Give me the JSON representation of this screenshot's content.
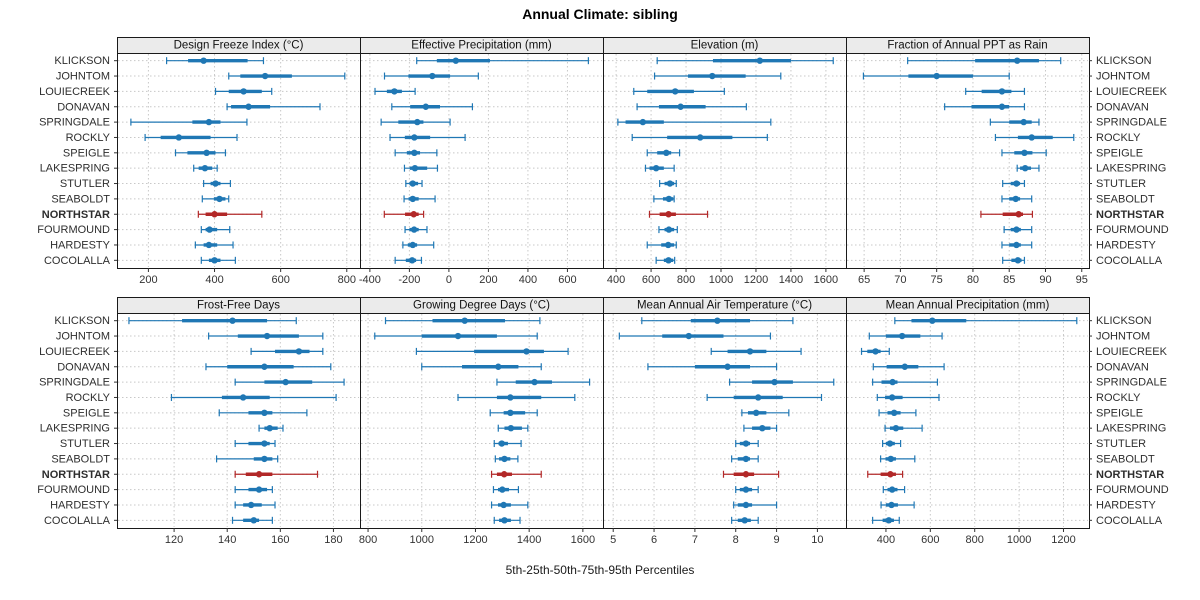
{
  "title": "Annual Climate: sibling",
  "caption": "5th-25th-50th-75th-95th Percentiles",
  "highlight_station": "NORTHSTAR",
  "stations": [
    "KLICKSON",
    "JOHNTOM",
    "LOUIECREEK",
    "DONAVAN",
    "SPRINGDALE",
    "ROCKLY",
    "SPEIGLE",
    "LAKESPRING",
    "STUTLER",
    "SEABOLDT",
    "NORTHSTAR",
    "FOURMOUND",
    "HARDESTY",
    "COCOLALLA"
  ],
  "colors": {
    "series": "#1F77B4",
    "highlight": "#B22828",
    "strip_bg": "#EBEBEB",
    "grid": "#C8C8C8",
    "border": "#1A1A1A",
    "text": "#2E2E2E",
    "tick_text": "#333333"
  },
  "percentile_levels": [
    5,
    25,
    50,
    75,
    95
  ],
  "chart_data": [
    {
      "type": "scatter",
      "variant": "percentile-intervals",
      "row": 0,
      "col": 0,
      "title": "Design Freeze Index (°C)",
      "xlim": [
        105,
        840
      ],
      "xticks": [
        200,
        400,
        600,
        800
      ],
      "grid": true,
      "percentiles": [
        [
          255,
          320,
          367,
          500,
          548
        ],
        [
          443,
          478,
          553,
          634,
          794
        ],
        [
          403,
          443,
          488,
          543,
          573
        ],
        [
          438,
          450,
          503,
          568,
          719
        ],
        [
          147,
          333,
          383,
          418,
          498
        ],
        [
          190,
          237,
          292,
          388,
          468
        ],
        [
          282,
          318,
          376,
          403,
          433
        ],
        [
          337,
          352,
          371,
          393,
          408
        ],
        [
          367,
          388,
          403,
          418,
          448
        ],
        [
          363,
          398,
          415,
          433,
          443
        ],
        [
          351,
          373,
          400,
          438,
          543
        ],
        [
          360,
          373,
          385,
          408,
          446
        ],
        [
          342,
          367,
          383,
          408,
          456
        ],
        [
          360,
          383,
          400,
          418,
          463
        ]
      ]
    },
    {
      "type": "scatter",
      "variant": "percentile-intervals",
      "row": 0,
      "col": 1,
      "title": "Effective Precipitation (mm)",
      "xlim": [
        -450,
        780
      ],
      "xticks": [
        -400,
        -200,
        0,
        200,
        400,
        600
      ],
      "grid": true,
      "percentiles": [
        [
          -163,
          -61,
          35,
          208,
          706
        ],
        [
          -326,
          -205,
          -84,
          6,
          149
        ],
        [
          -374,
          -314,
          -276,
          -238,
          -171
        ],
        [
          -289,
          -196,
          -117,
          -45,
          119
        ],
        [
          -343,
          -256,
          -160,
          -129,
          6
        ],
        [
          -298,
          -223,
          -175,
          -95,
          82
        ],
        [
          -272,
          -213,
          -175,
          -146,
          -61
        ],
        [
          -225,
          -198,
          -172,
          -110,
          -58
        ],
        [
          -218,
          -200,
          -183,
          -156,
          -136
        ],
        [
          -227,
          -204,
          -183,
          -153,
          -70
        ],
        [
          -327,
          -222,
          -178,
          -153,
          -128
        ],
        [
          -222,
          -200,
          -176,
          -153,
          -111
        ],
        [
          -233,
          -208,
          -183,
          -161,
          -77
        ],
        [
          -272,
          -218,
          -186,
          -166,
          -139
        ]
      ]
    },
    {
      "type": "scatter",
      "variant": "percentile-intervals",
      "row": 0,
      "col": 2,
      "title": "Elevation (m)",
      "xlim": [
        325,
        1715
      ],
      "xticks": [
        400,
        600,
        800,
        1000,
        1200,
        1400,
        1600
      ],
      "grid": true,
      "percentiles": [
        [
          635,
          954,
          1222,
          1400,
          1642
        ],
        [
          620,
          811,
          950,
          1141,
          1342
        ],
        [
          501,
          578,
          738,
          845,
          1019
        ],
        [
          520,
          645,
          769,
          912,
          1145
        ],
        [
          410,
          454,
          553,
          673,
          1285
        ],
        [
          492,
          692,
          881,
          1065,
          1265
        ],
        [
          578,
          635,
          687,
          715,
          763
        ],
        [
          568,
          591,
          629,
          673,
          732
        ],
        [
          649,
          677,
          708,
          732,
          744
        ],
        [
          616,
          668,
          702,
          727,
          732
        ],
        [
          591,
          649,
          700,
          742,
          923
        ],
        [
          645,
          677,
          702,
          732,
          750
        ],
        [
          578,
          658,
          698,
          732,
          744
        ],
        [
          629,
          673,
          700,
          727,
          735
        ]
      ]
    },
    {
      "type": "scatter",
      "variant": "percentile-intervals",
      "row": 0,
      "col": 3,
      "title": "Fraction of Annual PPT as Rain",
      "xlim": [
        62.5,
        96
      ],
      "xticks": [
        65,
        70,
        75,
        80,
        85,
        90,
        95
      ],
      "grid": true,
      "percentiles": [
        [
          71,
          80.3,
          86.1,
          89.1,
          92.1
        ],
        [
          64.9,
          71.1,
          75,
          80,
          85
        ],
        [
          79,
          81.2,
          84,
          85.3,
          87.1
        ],
        [
          76.1,
          79.8,
          84,
          85,
          87.1
        ],
        [
          82.4,
          85,
          87,
          88.1,
          89.1
        ],
        [
          83.1,
          86.2,
          88.1,
          91,
          93.9
        ],
        [
          84,
          85.7,
          87.1,
          88.2,
          90.1
        ],
        [
          86.1,
          86.5,
          87.2,
          88,
          89.1
        ],
        [
          84.1,
          85.2,
          86,
          86.5,
          87.1
        ],
        [
          84,
          85,
          85.9,
          86.5,
          88.1
        ],
        [
          81.1,
          84.1,
          86.3,
          86.9,
          88.2
        ],
        [
          84.3,
          85.2,
          86,
          86.6,
          88.1
        ],
        [
          84,
          85,
          86,
          86.6,
          88.1
        ],
        [
          84.1,
          85.3,
          86.2,
          86.7,
          87.1
        ]
      ]
    },
    {
      "type": "scatter",
      "variant": "percentile-intervals",
      "row": 1,
      "col": 0,
      "title": "Frost-Free Days",
      "xlim": [
        98.5,
        190
      ],
      "xticks": [
        120,
        140,
        160,
        180
      ],
      "grid": true,
      "percentiles": [
        [
          103,
          123,
          142,
          155,
          166
        ],
        [
          133,
          144,
          155,
          167,
          176
        ],
        [
          149,
          158,
          167,
          171,
          176
        ],
        [
          132,
          140,
          154,
          165,
          179
        ],
        [
          143,
          154,
          162,
          172,
          184
        ],
        [
          119,
          138,
          146,
          156,
          181
        ],
        [
          137,
          148,
          154,
          157,
          170
        ],
        [
          152,
          154,
          156,
          159,
          161
        ],
        [
          143,
          148,
          154,
          156,
          158
        ],
        [
          136,
          150,
          154,
          157,
          159
        ],
        [
          143,
          147,
          152,
          157,
          174
        ],
        [
          143,
          148,
          152,
          155,
          157
        ],
        [
          143,
          146,
          149,
          153,
          158
        ],
        [
          142,
          146,
          150,
          152,
          157
        ]
      ]
    },
    {
      "type": "scatter",
      "variant": "percentile-intervals",
      "row": 1,
      "col": 1,
      "title": "Growing Degree Days (°C)",
      "xlim": [
        770,
        1675
      ],
      "xticks": [
        800,
        1000,
        1200,
        1400,
        1600
      ],
      "grid": true,
      "percentiles": [
        [
          865,
          1040,
          1160,
          1310,
          1440
        ],
        [
          825,
          1000,
          1135,
          1280,
          1430
        ],
        [
          980,
          1195,
          1390,
          1455,
          1545
        ],
        [
          1000,
          1150,
          1285,
          1360,
          1445
        ],
        [
          1280,
          1350,
          1420,
          1485,
          1625
        ],
        [
          1135,
          1280,
          1330,
          1445,
          1570
        ],
        [
          1255,
          1305,
          1330,
          1385,
          1430
        ],
        [
          1285,
          1308,
          1332,
          1373,
          1395
        ],
        [
          1270,
          1286,
          1298,
          1321,
          1370
        ],
        [
          1274,
          1288,
          1308,
          1330,
          1358
        ],
        [
          1260,
          1280,
          1307,
          1336,
          1445
        ],
        [
          1267,
          1284,
          1300,
          1325,
          1360
        ],
        [
          1260,
          1284,
          1305,
          1332,
          1395
        ],
        [
          1270,
          1288,
          1308,
          1332,
          1366
        ]
      ]
    },
    {
      "type": "scatter",
      "variant": "percentile-intervals",
      "row": 1,
      "col": 2,
      "title": "Mean Annual Air Temperature (°C)",
      "xlim": [
        4.75,
        10.7
      ],
      "xticks": [
        5,
        6,
        7,
        8,
        9,
        10
      ],
      "grid": true,
      "percentiles": [
        [
          5.7,
          6.9,
          7.55,
          8.35,
          9.4
        ],
        [
          5.15,
          6.2,
          6.85,
          7.7,
          8.85
        ],
        [
          7.4,
          7.8,
          8.35,
          8.75,
          9.6
        ],
        [
          5.85,
          7.0,
          7.8,
          8.35,
          9.0
        ],
        [
          7.85,
          8.4,
          8.95,
          9.4,
          10.4
        ],
        [
          7.3,
          7.95,
          8.55,
          9.15,
          10.1
        ],
        [
          8.15,
          8.3,
          8.5,
          8.75,
          9.3
        ],
        [
          8.2,
          8.4,
          8.65,
          8.85,
          9.0
        ],
        [
          8.0,
          8.1,
          8.25,
          8.35,
          8.55
        ],
        [
          7.9,
          8.05,
          8.25,
          8.35,
          8.55
        ],
        [
          7.7,
          7.95,
          8.25,
          8.45,
          9.05
        ],
        [
          8.0,
          8.1,
          8.25,
          8.4,
          8.55
        ],
        [
          7.95,
          8.05,
          8.25,
          8.4,
          9.0
        ],
        [
          7.9,
          8.05,
          8.22,
          8.37,
          8.55
        ]
      ]
    },
    {
      "type": "scatter",
      "variant": "percentile-intervals",
      "row": 1,
      "col": 3,
      "title": "Mean Annual Precipitation (mm)",
      "xlim": [
        220,
        1315
      ],
      "xticks": [
        400,
        600,
        800,
        1000,
        1200
      ],
      "grid": true,
      "percentiles": [
        [
          440,
          515,
          609,
          762,
          1260
        ],
        [
          325,
          400,
          473,
          555,
          653
        ],
        [
          290,
          316,
          353,
          376,
          415
        ],
        [
          343,
          403,
          485,
          546,
          662
        ],
        [
          340,
          380,
          430,
          452,
          632
        ],
        [
          361,
          396,
          428,
          475,
          639
        ],
        [
          369,
          407,
          437,
          466,
          535
        ],
        [
          396,
          418,
          445,
          478,
          563
        ],
        [
          385,
          400,
          418,
          440,
          466
        ],
        [
          376,
          398,
          422,
          445,
          530
        ],
        [
          318,
          376,
          420,
          445,
          475
        ],
        [
          388,
          407,
          428,
          452,
          484
        ],
        [
          378,
          400,
          425,
          454,
          527
        ],
        [
          340,
          385,
          413,
          436,
          460
        ]
      ]
    }
  ]
}
